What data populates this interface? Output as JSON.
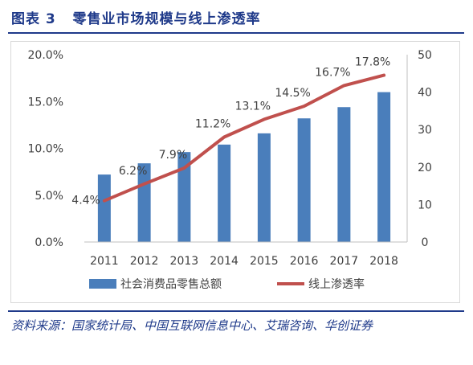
{
  "header": {
    "figure_label": "图表 3",
    "title": "零售业市场规模与线上渗透率"
  },
  "source": {
    "text": "资料来源：国家统计局、中国互联网信息中心、艾瑞咨询、华创证券"
  },
  "colors": {
    "title": "#1f3a8a",
    "bar": "#4a7ebb",
    "line": "#c0504d",
    "axis_text": "#404040"
  },
  "chart_data": {
    "type": "bar+line",
    "categories": [
      "2011",
      "2012",
      "2013",
      "2014",
      "2015",
      "2016",
      "2017",
      "2018"
    ],
    "series": [
      {
        "name": "社会消费品零售总额",
        "type": "bar",
        "axis": "right",
        "values": [
          18,
          21,
          24,
          26,
          29,
          33,
          36,
          40
        ]
      },
      {
        "name": "线上渗透率",
        "type": "line",
        "axis": "left",
        "values": [
          4.4,
          6.2,
          7.9,
          11.2,
          13.1,
          14.5,
          16.7,
          17.8
        ],
        "data_labels": [
          "4.4%",
          "6.2%",
          "7.9%",
          "11.2%",
          "13.1%",
          "14.5%",
          "16.7%",
          "17.8%"
        ]
      }
    ],
    "left_axis": {
      "ylim": [
        0,
        20
      ],
      "ticks": [
        0,
        5,
        10,
        15,
        20
      ],
      "tick_labels": [
        "0.0%",
        "5.0%",
        "10.0%",
        "15.0%",
        "20.0%"
      ]
    },
    "right_axis": {
      "ylim": [
        0,
        50
      ],
      "ticks": [
        0,
        10,
        20,
        30,
        40,
        50
      ],
      "tick_labels": [
        "0",
        "10",
        "20",
        "30",
        "40",
        "50"
      ]
    },
    "grid": false,
    "legend_position": "bottom"
  }
}
